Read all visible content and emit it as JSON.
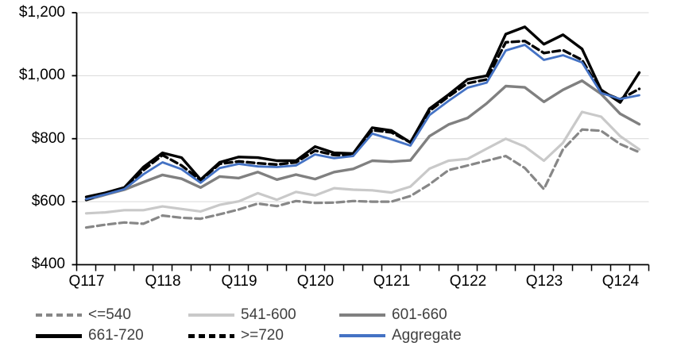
{
  "chart_data": {
    "type": "line",
    "title": "",
    "xlabel": "",
    "ylabel": "",
    "ylim": [
      400,
      1200
    ],
    "grid": "horizontal",
    "grid_color": "#d9d9d9",
    "axis_color": "#000000",
    "x_categories": [
      "Q117",
      "Q217",
      "Q317",
      "Q417",
      "Q118",
      "Q218",
      "Q318",
      "Q418",
      "Q119",
      "Q219",
      "Q319",
      "Q419",
      "Q120",
      "Q220",
      "Q320",
      "Q420",
      "Q121",
      "Q221",
      "Q321",
      "Q421",
      "Q122",
      "Q222",
      "Q322",
      "Q422",
      "Q123",
      "Q223",
      "Q323",
      "Q423",
      "Q124",
      "Q224"
    ],
    "x_tick_labels": [
      "Q117",
      "Q118",
      "Q119",
      "Q120",
      "Q121",
      "Q122",
      "Q123",
      "Q124"
    ],
    "x_tick_every": 4,
    "y_tick_labels": [
      "$1,200",
      "$1,000",
      "$800",
      "$600",
      "$400"
    ],
    "y_tick_values": [
      1200,
      1000,
      800,
      600,
      400
    ],
    "series": [
      {
        "name": "<=540",
        "color": "#878787",
        "dash": true,
        "width": 3.2,
        "values": [
          518,
          527,
          534,
          530,
          556,
          549,
          546,
          560,
          575,
          594,
          586,
          602,
          596,
          597,
          602,
          600,
          600,
          618,
          655,
          700,
          715,
          730,
          745,
          707,
          640,
          766,
          829,
          825,
          783,
          757
        ]
      },
      {
        "name": "541-600",
        "color": "#c9c9c9",
        "dash": false,
        "width": 3.2,
        "values": [
          563,
          566,
          573,
          573,
          585,
          577,
          569,
          590,
          601,
          627,
          606,
          631,
          620,
          643,
          638,
          636,
          629,
          648,
          705,
          730,
          736,
          768,
          800,
          775,
          730,
          787,
          885,
          870,
          808,
          766
        ]
      },
      {
        "name": "601-660",
        "color": "#808080",
        "dash": false,
        "width": 3.4,
        "values": [
          605,
          622,
          638,
          662,
          685,
          673,
          645,
          680,
          675,
          694,
          670,
          686,
          672,
          694,
          704,
          730,
          727,
          731,
          808,
          845,
          866,
          912,
          967,
          963,
          917,
          955,
          984,
          942,
          879,
          846
        ]
      },
      {
        "name": "661-720",
        "color": "#000000",
        "dash": false,
        "width": 3.4,
        "values": [
          615,
          628,
          645,
          710,
          755,
          740,
          670,
          725,
          742,
          740,
          730,
          730,
          775,
          755,
          753,
          835,
          826,
          788,
          895,
          940,
          988,
          1000,
          1132,
          1155,
          1100,
          1130,
          1085,
          955,
          915,
          1010
        ]
      },
      {
        "name": ">=720",
        "color": "#000000",
        "dash": true,
        "width": 3.4,
        "values": [
          606,
          626,
          642,
          700,
          748,
          715,
          668,
          720,
          728,
          722,
          718,
          725,
          762,
          748,
          748,
          827,
          820,
          788,
          888,
          934,
          976,
          988,
          1106,
          1110,
          1072,
          1081,
          1050,
          948,
          925,
          958
        ]
      },
      {
        "name": "Aggregate",
        "color": "#4472c4",
        "dash": false,
        "width": 2.8,
        "values": [
          608,
          623,
          640,
          687,
          725,
          703,
          660,
          707,
          720,
          712,
          710,
          715,
          750,
          738,
          745,
          816,
          798,
          778,
          875,
          920,
          962,
          978,
          1080,
          1098,
          1050,
          1065,
          1042,
          945,
          926,
          938
        ]
      }
    ],
    "legend": {
      "position": "bottom",
      "text_color": "#404040",
      "rows": [
        [
          {
            "label": "<=540",
            "series": 0
          },
          {
            "label": "541-600",
            "series": 1
          },
          {
            "label": "601-660",
            "series": 2
          }
        ],
        [
          {
            "label": "661-720",
            "series": 3
          },
          {
            "label": ">=720",
            "series": 4
          },
          {
            "label": "Aggregate",
            "series": 5
          }
        ]
      ]
    }
  }
}
